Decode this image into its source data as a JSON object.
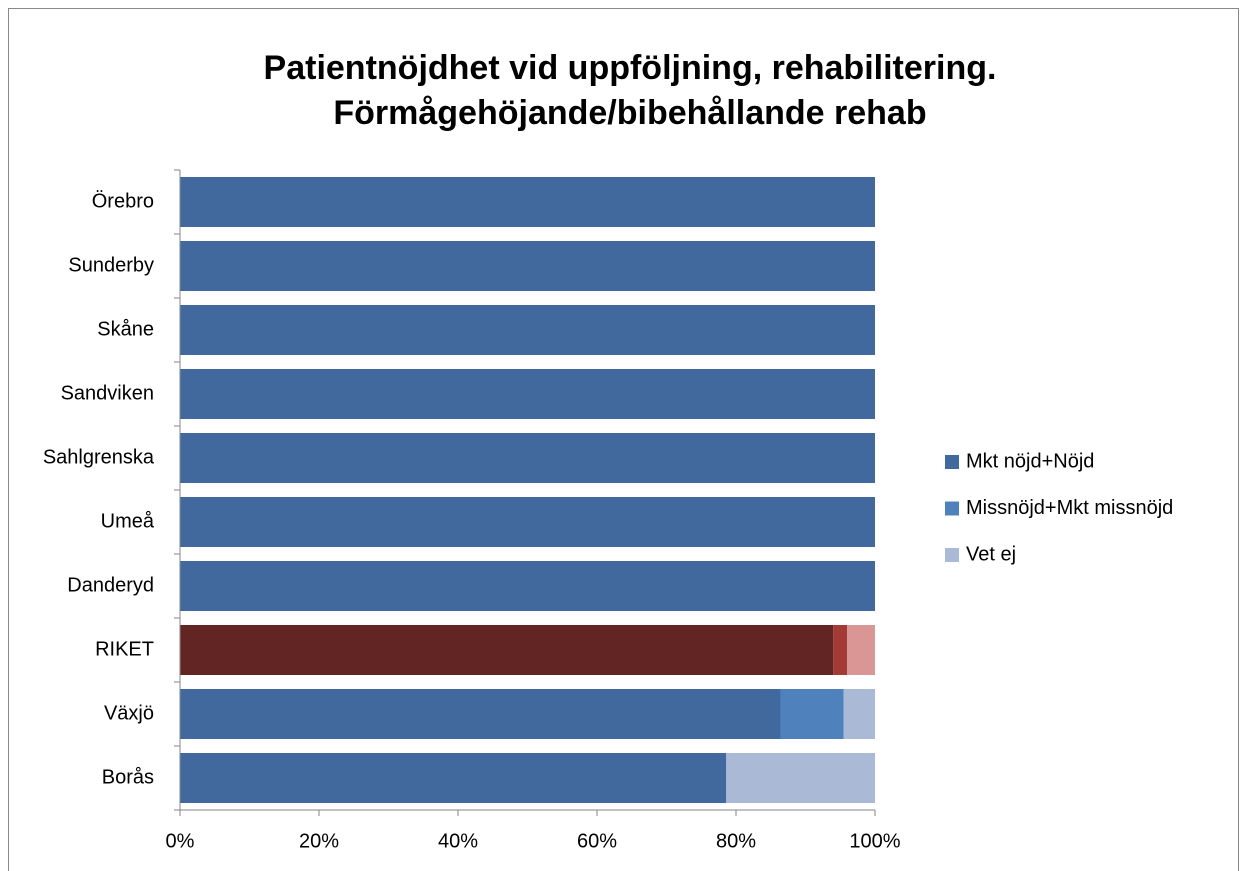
{
  "chart_data": {
    "type": "stacked-barh",
    "title": [
      "Patientnöjdhet vid uppföljning, rehabilitering.",
      "Förmågehöjande/bibehållande rehab"
    ],
    "categories": [
      "Örebro",
      "Sunderby",
      "Skåne",
      "Sandviken",
      "Sahlgrenska",
      "Umeå",
      "Danderyd",
      "RIKET",
      "Växjö",
      "Borås"
    ],
    "series": [
      {
        "name": "Mkt nöjd+Nöjd",
        "color": "#41699e",
        "values": [
          100,
          100,
          100,
          100,
          100,
          100,
          100,
          94,
          86.4,
          78.6
        ],
        "colors": [
          "#41699e",
          "#41699e",
          "#41699e",
          "#41699e",
          "#41699e",
          "#41699e",
          "#41699e",
          "#632523",
          "#41699e",
          "#41699e"
        ]
      },
      {
        "name": "Missnöjd+Mkt missnöjd",
        "color": "#4f81bd",
        "values": [
          0,
          0,
          0,
          0,
          0,
          0,
          0,
          2,
          9.1,
          0
        ],
        "colors": [
          "#4f81bd",
          "#4f81bd",
          "#4f81bd",
          "#4f81bd",
          "#4f81bd",
          "#4f81bd",
          "#4f81bd",
          "#a33a36",
          "#4f81bd",
          "#4f81bd"
        ]
      },
      {
        "name": "Vet ej",
        "color": "#aab9d6",
        "values": [
          0,
          0,
          0,
          0,
          0,
          0,
          0,
          4,
          4.5,
          21.4
        ],
        "colors": [
          "#aab9d6",
          "#aab9d6",
          "#aab9d6",
          "#aab9d6",
          "#aab9d6",
          "#aab9d6",
          "#aab9d6",
          "#d99694",
          "#aab9d6",
          "#aab9d6"
        ]
      }
    ],
    "xlim": [
      0,
      100
    ],
    "xticks": [
      {
        "value": 0,
        "label": "0%"
      },
      {
        "value": 20,
        "label": "20%"
      },
      {
        "value": 40,
        "label": "40%"
      },
      {
        "value": 60,
        "label": "60%"
      },
      {
        "value": 80,
        "label": "80%"
      },
      {
        "value": 100,
        "label": "100%"
      }
    ],
    "legend": "right"
  }
}
